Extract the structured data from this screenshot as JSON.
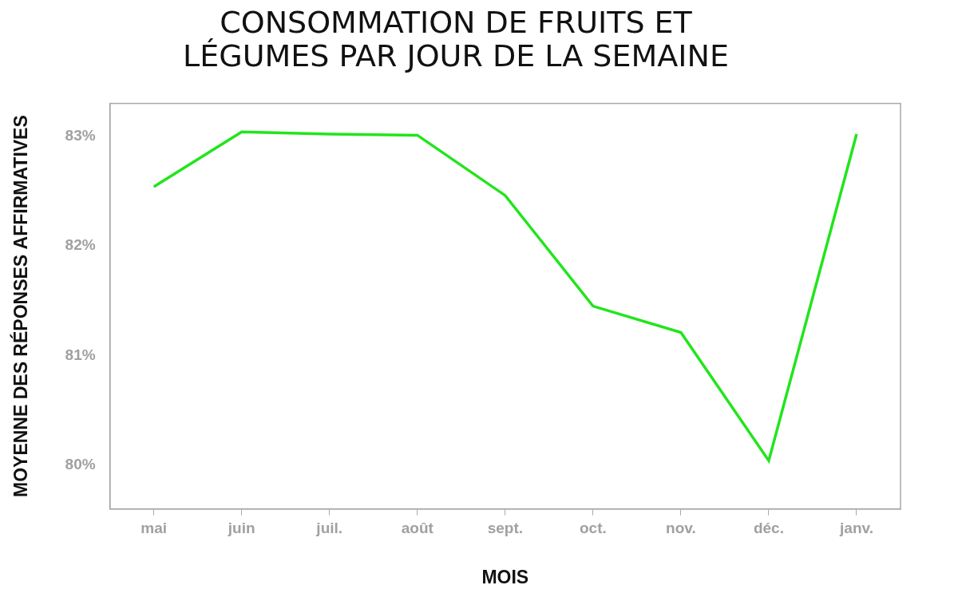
{
  "chart_data": {
    "type": "line",
    "title": [
      "CONSOMMATION DE FRUITS ET",
      "LÉGUMES PAR JOUR DE LA SEMAINE"
    ],
    "x_label": "MOIS",
    "y_label": "MOYENNE DES RÉPONSES AFFIRMATIVES",
    "categories": [
      "mai",
      "juin",
      "juil.",
      "août",
      "sept.",
      "oct.",
      "nov.",
      "déc.",
      "janv."
    ],
    "values": [
      82.54,
      83.04,
      83.02,
      83.01,
      82.46,
      81.45,
      81.21,
      80.04,
      83.02
    ],
    "color": "#22e51b",
    "ylim": [
      79.6,
      83.3
    ],
    "yticks": [
      {
        "value": 80,
        "label": "80%"
      },
      {
        "value": 81,
        "label": "81%"
      },
      {
        "value": 82,
        "label": "82%"
      },
      {
        "value": 83,
        "label": "83%"
      }
    ],
    "grid": false
  }
}
